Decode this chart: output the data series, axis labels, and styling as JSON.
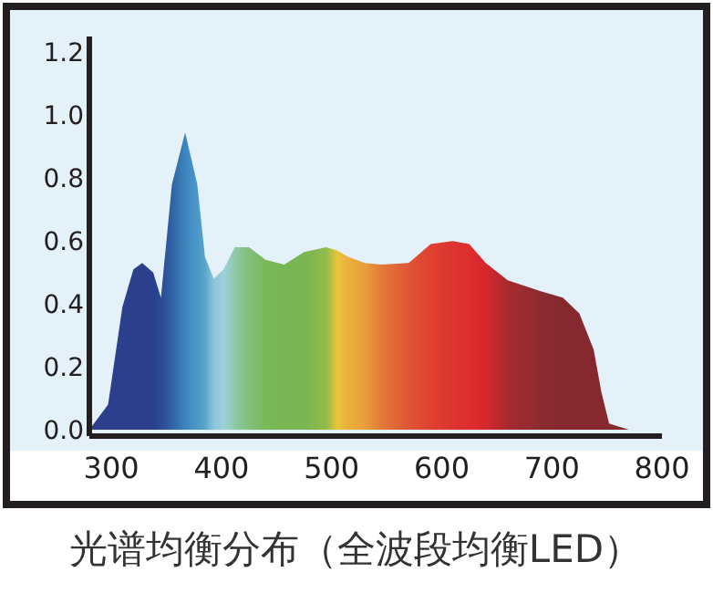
{
  "chart_data": {
    "type": "area",
    "annotations": [
      "光谱均衡分布（全波段均衡LED）"
    ],
    "x": [
      280,
      297,
      310,
      320,
      328,
      338,
      345,
      355,
      367,
      378,
      385,
      393,
      402,
      412,
      425,
      440,
      457,
      475,
      495,
      505,
      515,
      530,
      545,
      570,
      590,
      610,
      625,
      640,
      660,
      690,
      710,
      725,
      738,
      745,
      752,
      770,
      780
    ],
    "series": [
      {
        "values": [
          0,
          0.08,
          0.39,
          0.51,
          0.53,
          0.5,
          0.42,
          0.78,
          0.945,
          0.78,
          0.55,
          0.48,
          0.51,
          0.58,
          0.58,
          0.54,
          0.525,
          0.565,
          0.58,
          0.57,
          0.55,
          0.53,
          0.525,
          0.53,
          0.59,
          0.6,
          0.59,
          0.53,
          0.475,
          0.44,
          0.42,
          0.37,
          0.255,
          0.12,
          0.02,
          0,
          0
        ],
        "colors": [
          "#2b3f8c",
          "#2b3f8c",
          "#2b3f8c",
          "#2b3f8c",
          "#2b3f8c",
          "#2b3f8c",
          "#2c4a94",
          "#2f62a4",
          "#3d85bf",
          "#4b98c8",
          "#5aa5cc",
          "#8ac6d8",
          "#9ed0dc",
          "#8fc9a8",
          "#82c07a",
          "#7ab85a",
          "#78b653",
          "#7ab653",
          "#90bb4a",
          "#eac53a",
          "#e9b03a",
          "#e8a03a",
          "#e27a38",
          "#e05534",
          "#de4130",
          "#dc3430",
          "#dc2e2d",
          "#d6282c",
          "#a82a2e",
          "#8a2b2f",
          "#86292e",
          "#86292e",
          "#86292e",
          "#86292e",
          "#86292e",
          "#86292e",
          "#86292e"
        ]
      }
    ],
    "xlim": [
      280,
      800
    ],
    "ylim": [
      -0.02,
      1.25
    ],
    "xticks": [
      300,
      400,
      500,
      600,
      700,
      800
    ],
    "yticks": [
      {
        "value": 0,
        "label": "0.0"
      },
      {
        "value": 0.2,
        "label": "0.2"
      },
      {
        "value": 0.4,
        "label": "0.4"
      },
      {
        "value": 0.6,
        "label": "0.6"
      },
      {
        "value": 0.8,
        "label": "0.8"
      },
      {
        "value": 1,
        "label": "1.0"
      },
      {
        "value": 1.2,
        "label": "1.2"
      }
    ]
  }
}
